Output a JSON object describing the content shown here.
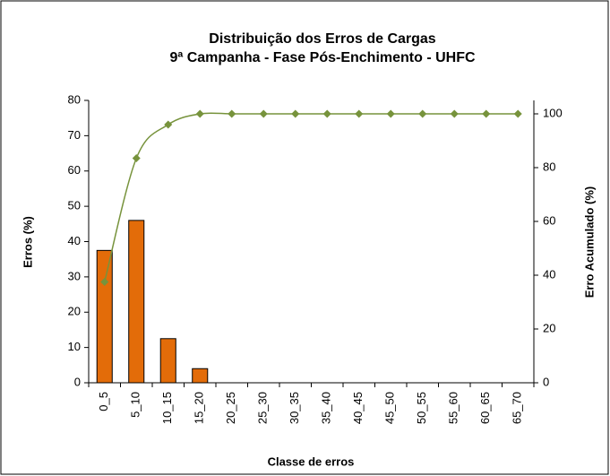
{
  "chart_data": {
    "type": "bar",
    "title": "Distribuição dos Erros de Cargas",
    "subtitle": "9ª Campanha - Fase Pós-Enchimento - UHFC",
    "x_label": "Classe de erros",
    "y_label": "Erros (%)",
    "y2_label": "Erro Acumulado (%)",
    "categories": [
      "0_5",
      "5_10",
      "10_15",
      "15_20",
      "20_25",
      "25_30",
      "30_35",
      "35_40",
      "40_45",
      "45_50",
      "50_55",
      "55_60",
      "60_65",
      "65_70"
    ],
    "series": [
      {
        "type": "bar",
        "color": "#e36c09",
        "values": [
          37.5,
          46,
          12.5,
          4,
          0,
          0,
          0,
          0,
          0,
          0,
          0,
          0,
          0,
          0
        ]
      },
      {
        "type": "line",
        "color": "#77933c",
        "axis": "y2",
        "values": [
          37.5,
          83.5,
          96,
          100,
          100,
          100,
          100,
          100,
          100,
          100,
          100,
          100,
          100,
          100
        ]
      }
    ],
    "ylim": [
      0,
      80
    ],
    "yticks": [
      0,
      10,
      20,
      30,
      40,
      50,
      60,
      70,
      80
    ],
    "y2lim": [
      0,
      105
    ],
    "y2ticks": [
      0,
      20,
      40,
      60,
      80,
      100
    ],
    "grid": false
  }
}
